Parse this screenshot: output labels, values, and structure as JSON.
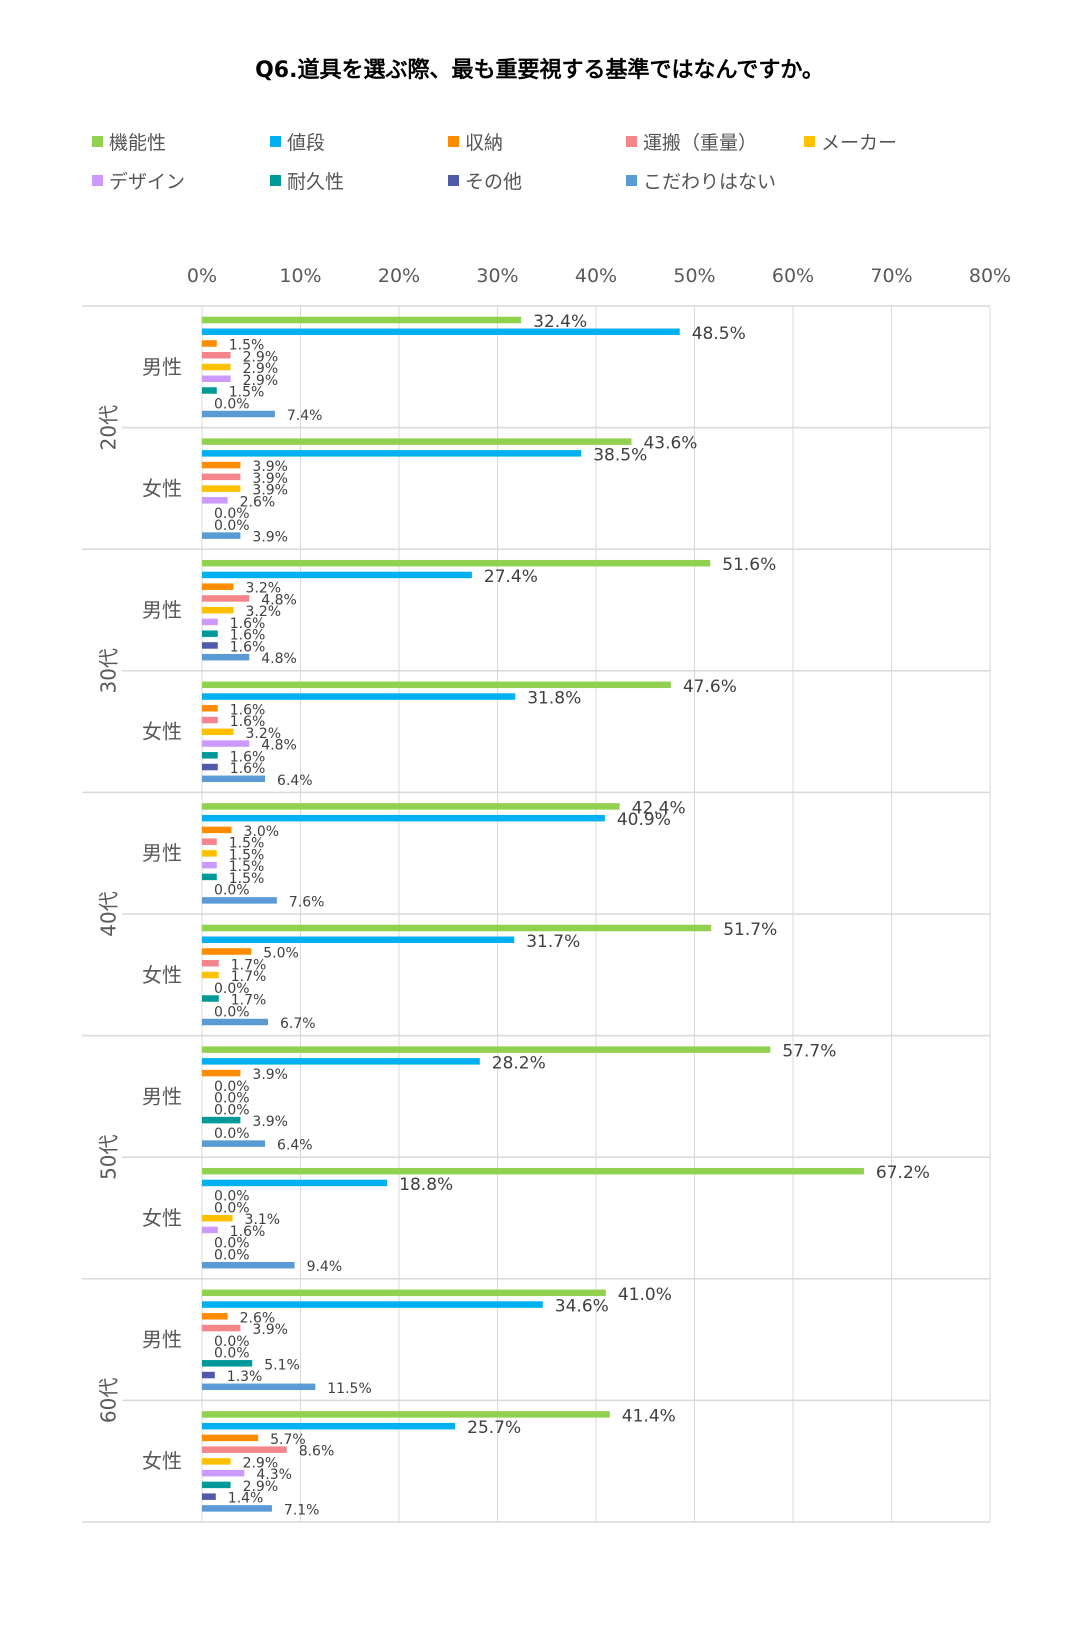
{
  "chart_data": {
    "type": "bar",
    "orientation": "horizontal",
    "title": "Q6.道具を選ぶ際、最も重要視する基準ではなんですか。",
    "xlim": [
      0,
      80
    ],
    "x_ticks": [
      "0%",
      "10%",
      "20%",
      "30%",
      "40%",
      "50%",
      "60%",
      "70%",
      "80%"
    ],
    "grid": true,
    "legend_position": "top",
    "series": [
      {
        "name": "機能性",
        "color": "#92D050"
      },
      {
        "name": "値段",
        "color": "#00B0F0"
      },
      {
        "name": "収納",
        "color": "#FF8C00"
      },
      {
        "name": "運搬（重量）",
        "color": "#F4858A"
      },
      {
        "name": "メーカー",
        "color": "#FFC000"
      },
      {
        "name": "デザイン",
        "color": "#CC99FF"
      },
      {
        "name": "耐久性",
        "color": "#009999"
      },
      {
        "name": "その他",
        "color": "#4F5BA8"
      },
      {
        "name": "こだわりはない",
        "color": "#5B9BD5"
      }
    ],
    "age_groups": [
      {
        "label": "20代",
        "subgroups": [
          {
            "label": "男性",
            "values": [
              32.4,
              48.5,
              1.5,
              2.9,
              2.9,
              2.9,
              1.5,
              0.0,
              7.4
            ],
            "value_labels": [
              "32.4%",
              "48.5%",
              "1.5%",
              "2.9%",
              "2.9%",
              "2.9%",
              "1.5%",
              "0.0%",
              "7.4%"
            ]
          },
          {
            "label": "女性",
            "values": [
              43.6,
              38.5,
              3.9,
              3.9,
              3.9,
              2.6,
              0.0,
              0.0,
              3.9
            ],
            "value_labels": [
              "43.6%",
              "38.5%",
              "3.9%",
              "3.9%",
              "3.9%",
              "2.6%",
              "0.0%",
              "0.0%",
              "3.9%"
            ]
          }
        ]
      },
      {
        "label": "30代",
        "subgroups": [
          {
            "label": "男性",
            "values": [
              51.6,
              27.4,
              3.2,
              4.8,
              3.2,
              1.6,
              1.6,
              1.6,
              4.8
            ],
            "value_labels": [
              "51.6%",
              "27.4%",
              "3.2%",
              "4.8%",
              "3.2%",
              "1.6%",
              "1.6%",
              "1.6%",
              "4.8%"
            ]
          },
          {
            "label": "女性",
            "values": [
              47.6,
              31.8,
              1.6,
              1.6,
              3.2,
              4.8,
              1.6,
              1.6,
              6.4
            ],
            "value_labels": [
              "47.6%",
              "31.8%",
              "1.6%",
              "1.6%",
              "3.2%",
              "4.8%",
              "1.6%",
              "1.6%",
              "6.4%"
            ]
          }
        ]
      },
      {
        "label": "40代",
        "subgroups": [
          {
            "label": "男性",
            "values": [
              42.4,
              40.9,
              3.0,
              1.5,
              1.5,
              1.5,
              1.5,
              0.0,
              7.6
            ],
            "value_labels": [
              "42.4%",
              "40.9%",
              "3.0%",
              "1.5%",
              "1.5%",
              "1.5%",
              "1.5%",
              "0.0%",
              "7.6%"
            ]
          },
          {
            "label": "女性",
            "values": [
              51.7,
              31.7,
              5.0,
              1.7,
              1.7,
              0.0,
              1.7,
              0.0,
              6.7
            ],
            "value_labels": [
              "51.7%",
              "31.7%",
              "5.0%",
              "1.7%",
              "1.7%",
              "0.0%",
              "1.7%",
              "0.0%",
              "6.7%"
            ]
          }
        ]
      },
      {
        "label": "50代",
        "subgroups": [
          {
            "label": "男性",
            "values": [
              57.7,
              28.2,
              3.9,
              0.0,
              0.0,
              0.0,
              3.9,
              0.0,
              6.4
            ],
            "value_labels": [
              "57.7%",
              "28.2%",
              "3.9%",
              "0.0%",
              "0.0%",
              "0.0%",
              "3.9%",
              "0.0%",
              "6.4%"
            ]
          },
          {
            "label": "女性",
            "values": [
              67.2,
              18.8,
              0.0,
              0.0,
              3.1,
              1.6,
              0.0,
              0.0,
              9.4
            ],
            "value_labels": [
              "67.2%",
              "18.8%",
              "0.0%",
              "0.0%",
              "3.1%",
              "1.6%",
              "0.0%",
              "0.0%",
              "9.4%"
            ]
          }
        ]
      },
      {
        "label": "60代",
        "subgroups": [
          {
            "label": "男性",
            "values": [
              41.0,
              34.6,
              2.6,
              3.9,
              0.0,
              0.0,
              5.1,
              1.3,
              11.5
            ],
            "value_labels": [
              "41.0%",
              "34.6%",
              "2.6%",
              "3.9%",
              "0.0%",
              "0.0%",
              "5.1%",
              "1.3%",
              "11.5%"
            ]
          },
          {
            "label": "女性",
            "values": [
              41.4,
              25.7,
              5.7,
              8.6,
              2.9,
              4.3,
              2.9,
              1.4,
              7.1
            ],
            "value_labels": [
              "41.4%",
              "25.7%",
              "5.7%",
              "8.6%",
              "2.9%",
              "4.3%",
              "2.9%",
              "1.4%",
              "7.1%"
            ]
          }
        ]
      }
    ]
  }
}
